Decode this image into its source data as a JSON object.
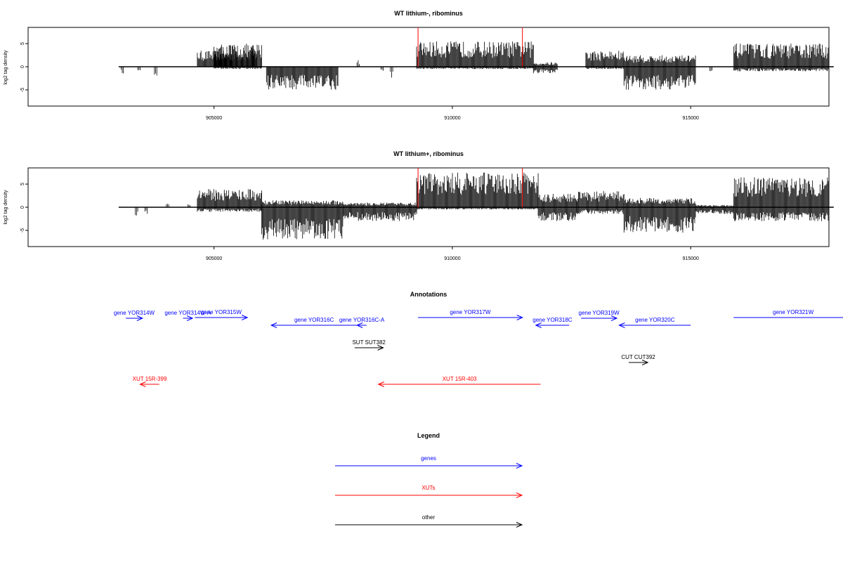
{
  "chart_data": [
    {
      "type": "bar",
      "title": "WT lithium-, ribominus",
      "ylabel": "log2 tag density",
      "xlabel": "",
      "xlim": [
        901100,
        917900
      ],
      "ylim": [
        -8.5,
        8.5
      ],
      "xticks": [
        905000,
        910000,
        915000
      ],
      "yticks": [
        -5,
        0,
        5
      ],
      "grid": false,
      "baseline": {
        "x": [
          903000,
          918000
        ]
      },
      "profile": [
        {
          "x": [
            903050,
            903100
          ],
          "plus": 0,
          "minus": -1.5
        },
        {
          "x": [
            903400,
            903450
          ],
          "plus": 0,
          "minus": -2
        },
        {
          "x": [
            903750,
            903800
          ],
          "plus": 0,
          "minus": -2
        },
        {
          "x": [
            904650,
            905900
          ],
          "plus": 3.5,
          "minus": 0
        },
        {
          "x": [
            905000,
            906000
          ],
          "plus": 5,
          "minus": -0.5
        },
        {
          "x": [
            906100,
            907600
          ],
          "plus": 0,
          "minus": -5
        },
        {
          "x": [
            908000,
            908050
          ],
          "plus": 1.5,
          "minus": 0
        },
        {
          "x": [
            908500,
            908550
          ],
          "plus": 0,
          "minus": -1
        },
        {
          "x": [
            908700,
            908750
          ],
          "plus": 0,
          "minus": -2.5
        },
        {
          "x": [
            909250,
            911700
          ],
          "plus": 5.5,
          "minus": -0.5
        },
        {
          "x": [
            911700,
            912200
          ],
          "plus": 1,
          "minus": -1.5
        },
        {
          "x": [
            912800,
            913600
          ],
          "plus": 3.5,
          "minus": -0.5
        },
        {
          "x": [
            913600,
            915100
          ],
          "plus": 2.5,
          "minus": -5
        },
        {
          "x": [
            915400,
            915450
          ],
          "plus": 0,
          "minus": -1
        },
        {
          "x": [
            915900,
            917900
          ],
          "plus": 5,
          "minus": -1
        }
      ],
      "red_markers": {
        "x": [
          909280,
          911470
        ],
        "height": 8.5
      }
    },
    {
      "type": "bar",
      "title": "WT lithium+, ribominus",
      "ylabel": "log2 tag density",
      "xlabel": "",
      "xlim": [
        901100,
        917900
      ],
      "ylim": [
        -8.5,
        8.5
      ],
      "xticks": [
        905000,
        910000,
        915000
      ],
      "yticks": [
        -5,
        0,
        5
      ],
      "grid": false,
      "baseline": {
        "x": [
          903000,
          918000
        ]
      },
      "profile": [
        {
          "x": [
            903350,
            903400
          ],
          "plus": 0,
          "minus": -2.5
        },
        {
          "x": [
            903550,
            903600
          ],
          "plus": 0,
          "minus": -1.5
        },
        {
          "x": [
            904000,
            904050
          ],
          "plus": 0.8,
          "minus": 0
        },
        {
          "x": [
            904450,
            904500
          ],
          "plus": 0.8,
          "minus": 0
        },
        {
          "x": [
            904650,
            906000
          ],
          "plus": 4,
          "minus": -1
        },
        {
          "x": [
            906000,
            907700
          ],
          "plus": 1.5,
          "minus": -7
        },
        {
          "x": [
            907700,
            909250
          ],
          "plus": 1,
          "minus": -3
        },
        {
          "x": [
            909250,
            911800
          ],
          "plus": 7.5,
          "minus": -0.5
        },
        {
          "x": [
            911800,
            912600
          ],
          "plus": 3,
          "minus": -3
        },
        {
          "x": [
            912600,
            913600
          ],
          "plus": 3.5,
          "minus": -1.5
        },
        {
          "x": [
            913600,
            915100
          ],
          "plus": 2,
          "minus": -5.5
        },
        {
          "x": [
            915100,
            915900
          ],
          "plus": 0.5,
          "minus": -1.5
        },
        {
          "x": [
            915900,
            917900
          ],
          "plus": 6.5,
          "minus": -3
        }
      ],
      "red_markers": {
        "x": [
          909280,
          911470
        ],
        "height": 8.5
      }
    }
  ],
  "annotations": {
    "title": "Annotations",
    "colors": {
      "gene": "#0000ff",
      "xut": "#ff0000",
      "other": "#000000"
    },
    "items": [
      {
        "label": "gene YOR314W",
        "kind": "gene",
        "dir": "+",
        "x": [
          903150,
          903500
        ],
        "row": 0
      },
      {
        "label": "gene YOR314W-A",
        "kind": "gene",
        "dir": "+",
        "x": [
          904350,
          904550
        ],
        "row": 0
      },
      {
        "label": "gene YOR315W",
        "kind": "gene",
        "dir": "+",
        "x": [
          904600,
          905700
        ],
        "row": 1
      },
      {
        "label": "gene YOR316C",
        "kind": "gene",
        "dir": "-",
        "x": [
          906200,
          908000
        ],
        "row": 2
      },
      {
        "label": "gene YOR316C-A",
        "kind": "gene",
        "dir": "-",
        "x": [
          908000,
          908200
        ],
        "row": 2
      },
      {
        "label": "gene YOR317W",
        "kind": "gene",
        "dir": "+",
        "x": [
          909280,
          911470
        ],
        "row": 1
      },
      {
        "label": "gene YOR318C",
        "kind": "gene",
        "dir": "-",
        "x": [
          911750,
          912450
        ],
        "row": 2
      },
      {
        "label": "gene YOR319W",
        "kind": "gene",
        "dir": "+",
        "x": [
          912700,
          913450
        ],
        "row": 0
      },
      {
        "label": "gene YOR320C",
        "kind": "gene",
        "dir": "-",
        "x": [
          913500,
          915000
        ],
        "row": 2
      },
      {
        "label": "gene YOR321W",
        "kind": "gene",
        "dir": "+",
        "x": [
          915900,
          918400
        ],
        "row": 1
      },
      {
        "label": "SUT SUT382",
        "kind": "other",
        "dir": "+",
        "x": [
          907950,
          908550
        ],
        "row": 3
      },
      {
        "label": "CUT CUT392",
        "kind": "other",
        "dir": "+",
        "x": [
          913700,
          914100
        ],
        "row": 4
      },
      {
        "label": "XUT 15R-399",
        "kind": "xut",
        "dir": "-",
        "x": [
          903450,
          903850
        ],
        "row": 5
      },
      {
        "label": "XUT 15R-403",
        "kind": "xut",
        "dir": "-",
        "x": [
          908450,
          911850
        ],
        "row": 5
      }
    ]
  },
  "legend": {
    "title": "Legend",
    "entries": [
      {
        "label": "genes",
        "kind": "gene"
      },
      {
        "label": "XUTs",
        "kind": "xut"
      },
      {
        "label": "other",
        "kind": "other"
      }
    ]
  }
}
